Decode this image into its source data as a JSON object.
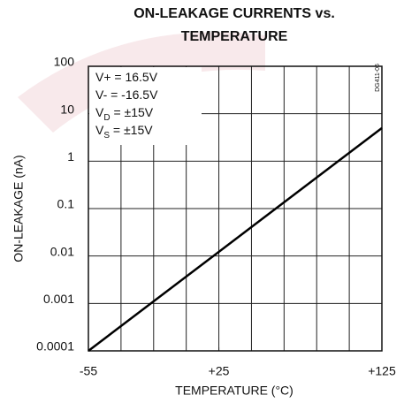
{
  "chart_data": {
    "type": "line",
    "title": [
      "ON-LEAKAGE CURRENTS vs.",
      "TEMPERATURE"
    ],
    "x_label": "TEMPERATURE (°C)",
    "y_label": "ON-LEAKAGE (nA)",
    "figure_id": "DG411-06",
    "annotations": [
      [
        "V+ = 16.5V"
      ],
      [
        "V- = -16.5V"
      ],
      [
        "V",
        "D",
        " = ±15V"
      ],
      [
        "V",
        "S",
        " = ±15V"
      ]
    ],
    "x": [
      -55,
      125
    ],
    "series": [
      {
        "color": "#000000",
        "values": [
          0.0001,
          5
        ]
      }
    ],
    "xlim": [
      -55,
      125
    ],
    "xticks": [
      {
        "value": -55,
        "label": "-55"
      },
      {
        "value": 25,
        "label": "+25"
      },
      {
        "value": 125,
        "label": "+125"
      }
    ],
    "xgrid": [
      -35,
      -15,
      5,
      25,
      45,
      65,
      85,
      105
    ],
    "ylim": [
      0.0001,
      100
    ],
    "y_log": true,
    "yticks": [
      100,
      10,
      1,
      0.1,
      0.01,
      0.001,
      0.0001
    ],
    "grid": true
  }
}
